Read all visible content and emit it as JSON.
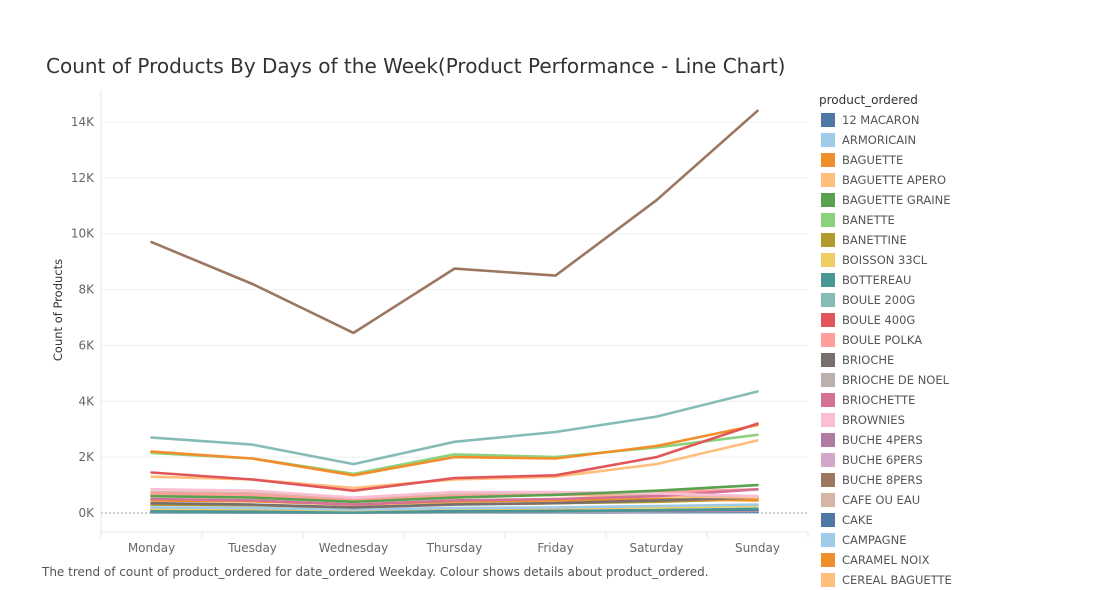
{
  "chart_data": {
    "type": "line",
    "title": "Count of Products By Days of the Week(Product Performance - Line Chart)",
    "xlabel": "",
    "ylabel": "Count of Products",
    "categories": [
      "Monday",
      "Tuesday",
      "Wednesday",
      "Thursday",
      "Friday",
      "Saturday",
      "Sunday"
    ],
    "ylim": [
      -500,
      15000
    ],
    "yticks": [
      0,
      2000,
      4000,
      6000,
      8000,
      10000,
      12000,
      14000
    ],
    "ytick_labels": [
      "0K",
      "2K",
      "4K",
      "6K",
      "8K",
      "10K",
      "12K",
      "14K"
    ],
    "grid": true,
    "legend_title": "product_ordered",
    "legend_position": "right",
    "caption": "The trend of count of product_ordered for date_ordered Weekday.  Colour shows details about product_ordered.",
    "series": [
      {
        "name": "12 MACARON",
        "color": "#4e79a7",
        "values": [
          20,
          15,
          10,
          20,
          20,
          30,
          40
        ]
      },
      {
        "name": "ARMORICAIN",
        "color": "#a0cbe8",
        "values": [
          40,
          40,
          30,
          40,
          40,
          60,
          80
        ]
      },
      {
        "name": "BAGUETTE",
        "color": "#f28e2b",
        "values": [
          2200,
          1950,
          1350,
          2000,
          1950,
          2400,
          3150
        ]
      },
      {
        "name": "BAGUETTE APERO",
        "color": "#ffbe7d",
        "values": [
          1300,
          1200,
          900,
          1200,
          1300,
          1750,
          2600
        ]
      },
      {
        "name": "BAGUETTE GRAINE",
        "color": "#59a14f",
        "values": [
          600,
          550,
          400,
          550,
          650,
          800,
          1000
        ]
      },
      {
        "name": "BANETTE",
        "color": "#8cd17d",
        "values": [
          2150,
          1950,
          1400,
          2100,
          2000,
          2350,
          2800
        ]
      },
      {
        "name": "BANETTINE",
        "color": "#b6992d",
        "values": [
          300,
          280,
          200,
          320,
          350,
          400,
          500
        ]
      },
      {
        "name": "BOISSON 33CL",
        "color": "#f1ce63",
        "values": [
          150,
          140,
          100,
          160,
          170,
          200,
          250
        ]
      },
      {
        "name": "BOTTEREAU",
        "color": "#499894",
        "values": [
          50,
          40,
          30,
          50,
          60,
          100,
          150
        ]
      },
      {
        "name": "BOULE 200G",
        "color": "#86bcb6",
        "values": [
          2700,
          2450,
          1750,
          2550,
          2900,
          3450,
          4350
        ]
      },
      {
        "name": "BOULE 400G",
        "color": "#e15759",
        "values": [
          1450,
          1200,
          800,
          1250,
          1350,
          2000,
          3200
        ]
      },
      {
        "name": "BOULE POLKA",
        "color": "#ff9d9a",
        "values": [
          700,
          650,
          450,
          600,
          650,
          750,
          850
        ]
      },
      {
        "name": "BRIOCHE",
        "color": "#79706e",
        "values": [
          350,
          300,
          200,
          300,
          350,
          450,
          550
        ]
      },
      {
        "name": "BRIOCHE DE NOEL",
        "color": "#bab0ac",
        "values": [
          40,
          30,
          20,
          30,
          40,
          60,
          80
        ]
      },
      {
        "name": "BRIOCHETTE",
        "color": "#d37295",
        "values": [
          500,
          450,
          300,
          450,
          500,
          600,
          850
        ]
      },
      {
        "name": "BROWNIES",
        "color": "#fabfd2",
        "values": [
          850,
          800,
          550,
          750,
          750,
          700,
          600
        ]
      },
      {
        "name": "BUCHE 4PERS",
        "color": "#b07aa1",
        "values": [
          60,
          50,
          40,
          50,
          60,
          80,
          100
        ]
      },
      {
        "name": "BUCHE 6PERS",
        "color": "#d4a6c8",
        "values": [
          50,
          40,
          30,
          40,
          50,
          70,
          90
        ]
      },
      {
        "name": "BUCHE 8PERS",
        "color": "#9d7660",
        "values": [
          9700,
          8200,
          6450,
          8750,
          8500,
          11200,
          14400
        ]
      },
      {
        "name": "CAFE OU EAU",
        "color": "#d7b5a6",
        "values": [
          750,
          700,
          500,
          700,
          700,
          650,
          600
        ]
      },
      {
        "name": "CAKE",
        "color": "#4e79a7",
        "values": [
          80,
          70,
          50,
          70,
          80,
          100,
          120
        ]
      },
      {
        "name": "CAMPAGNE",
        "color": "#a0cbe8",
        "values": [
          200,
          180,
          120,
          180,
          200,
          250,
          300
        ]
      },
      {
        "name": "CARAMEL NOIX",
        "color": "#f28e2b",
        "values": [
          450,
          420,
          300,
          420,
          450,
          500,
          450
        ]
      },
      {
        "name": "CEREAL BAGUETTE",
        "color": "#ffbe7d",
        "values": [
          650,
          600,
          450,
          600,
          650,
          600,
          550
        ]
      }
    ]
  }
}
